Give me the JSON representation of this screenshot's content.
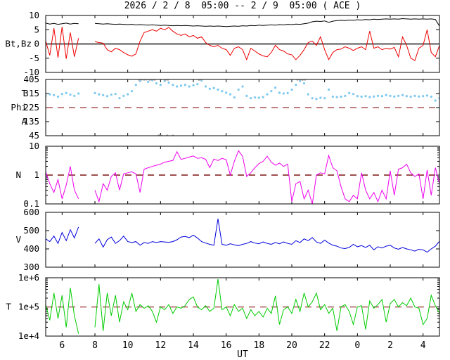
{
  "title": "2026 / 2 / 8  05:00 -- 2 / 9  05:00 ( ACE )",
  "xlabel": "UT",
  "colors": {
    "bt": "#000000",
    "bz": "#ee0000",
    "phi": "#7cc8f0",
    "phi_outlier": "#b8b8b8",
    "density": "#ee00ee",
    "speed": "#0000dd",
    "temperature": "#00cc00",
    "dash_rose": "#c07f7f",
    "dash_maroon": "#7d1414",
    "zero_line": "#555555"
  },
  "x_range": {
    "start_hour": 5,
    "end_hour": 29
  },
  "xticks": [
    {
      "h": 6,
      "label": "6"
    },
    {
      "h": 8,
      "label": "8"
    },
    {
      "h": 10,
      "label": "10"
    },
    {
      "h": 12,
      "label": "12"
    },
    {
      "h": 14,
      "label": "14"
    },
    {
      "h": 16,
      "label": "16"
    },
    {
      "h": 18,
      "label": "18"
    },
    {
      "h": 20,
      "label": "20"
    },
    {
      "h": 22,
      "label": "22"
    },
    {
      "h": 24,
      "label": "0"
    },
    {
      "h": 26,
      "label": "2"
    },
    {
      "h": 28,
      "label": "4"
    }
  ],
  "chart_data": [
    {
      "type": "line",
      "name": "magnetic-field-bt-bz",
      "scale": "linear",
      "ylim": [
        -10,
        10
      ],
      "ylabels": [
        {
          "text": "Bt,Bz",
          "at": 0,
          "x_end": 45
        }
      ],
      "yticks": [
        {
          "v": -10,
          "label": "-10"
        },
        {
          "v": -5,
          "label": "-5"
        },
        {
          "v": 0,
          "label": "0"
        },
        {
          "v": 5,
          "label": "5"
        },
        {
          "v": 10,
          "label": "10"
        }
      ],
      "hlines": [
        {
          "y": 0,
          "dash": false,
          "color": "#555555",
          "width": 2
        }
      ],
      "x_start": 5,
      "x_step": 0.25,
      "series": [
        {
          "name": "Bt",
          "style": "line",
          "color": "#000000",
          "values": [
            7.3,
            7.0,
            7.2,
            6.9,
            7.1,
            7.3,
            7.0,
            7.2,
            7.1,
            null,
            null,
            null,
            7.2,
            7.1,
            7.0,
            7.1,
            7.0,
            6.9,
            7.0,
            6.9,
            6.8,
            6.9,
            6.7,
            6.8,
            6.7,
            6.6,
            6.7,
            6.6,
            6.5,
            6.6,
            6.5,
            6.4,
            6.5,
            6.4,
            6.5,
            6.4,
            6.3,
            6.4,
            6.3,
            6.2,
            6.3,
            6.2,
            6.3,
            6.2,
            6.1,
            6.2,
            6.3,
            6.2,
            6.4,
            6.3,
            6.5,
            6.4,
            6.6,
            6.5,
            6.6,
            6.7,
            6.6,
            6.8,
            6.7,
            6.9,
            6.8,
            7.0,
            6.9,
            7.1,
            7.3,
            7.8,
            8.0,
            7.9,
            8.1,
            7.6,
            8.0,
            8.2,
            8.3,
            8.2,
            8.4,
            8.3,
            8.5,
            8.4,
            8.6,
            8.5,
            8.7,
            8.6,
            8.7,
            8.8,
            8.7,
            8.8,
            8.7,
            8.9,
            8.8,
            8.7,
            8.8,
            8.7,
            8.8,
            8.7,
            8.8,
            8.6,
            6.3
          ]
        },
        {
          "name": "Bz",
          "style": "line",
          "color": "#ee0000",
          "values": [
            1.0,
            -4.0,
            5.5,
            -4.8,
            6.0,
            -5.2,
            4.0,
            -4.5,
            2.0,
            null,
            null,
            null,
            0.8,
            0.5,
            0.3,
            -2.0,
            -2.8,
            -1.5,
            -2.0,
            -3.0,
            -3.8,
            -4.3,
            -3.5,
            1.0,
            4.0,
            4.5,
            5.0,
            4.5,
            5.5,
            5.0,
            5.8,
            4.5,
            3.5,
            3.0,
            3.5,
            2.5,
            3.0,
            2.0,
            2.5,
            0.5,
            -0.5,
            -1.0,
            -0.5,
            -1.5,
            -2.0,
            -4.0,
            -1.5,
            -1.0,
            -2.0,
            -5.5,
            -1.5,
            -2.5,
            -3.5,
            -4.2,
            -4.5,
            -3.0,
            -0.5,
            -2.0,
            -2.5,
            -3.5,
            -3.8,
            -5.5,
            -4.0,
            -2.0,
            0.5,
            1.0,
            -0.5,
            2.5,
            -2.0,
            -5.5,
            -3.0,
            -2.0,
            -1.8,
            -1.0,
            -1.5,
            -2.3,
            -1.5,
            -1.0,
            -2.0,
            4.5,
            -1.5,
            -1.0,
            -2.0,
            -1.5,
            -1.8,
            -1.2,
            -4.5,
            2.5,
            -0.5,
            -5.0,
            -5.8,
            -1.5,
            -0.5,
            5.0,
            -3.0,
            -4.5,
            -0.5
          ]
        }
      ]
    },
    {
      "type": "scatter",
      "name": "phi-angle",
      "scale": "linear",
      "ylim": [
        45,
        405
      ],
      "ylabels": [
        {
          "text": "T",
          "at": 315,
          "x_end": 38
        },
        {
          "text": "Phi",
          "at": 225,
          "x_end": 38
        },
        {
          "text": "A",
          "at": 135,
          "x_end": 38
        }
      ],
      "yticks": [
        {
          "v": 45,
          "label": "45"
        },
        {
          "v": 135,
          "label": "135"
        },
        {
          "v": 225,
          "label": "225"
        },
        {
          "v": 315,
          "label": "315"
        },
        {
          "v": 405,
          "label": "405"
        }
      ],
      "hlines": [
        {
          "y": 225,
          "dash": true,
          "color": "#c07f7f",
          "width": 2
        }
      ],
      "x_start": 5,
      "x_step": 0.25,
      "series": [
        {
          "name": "Phi",
          "style": "scatter",
          "color": "#7cc8f0",
          "values": [
            300,
            310,
            305,
            295,
            312,
            318,
            308,
            300,
            315,
            null,
            null,
            null,
            318,
            310,
            305,
            298,
            308,
            312,
            285,
            300,
            310,
            330,
            370,
            395,
            405,
            390,
            400,
            380,
            370,
            395,
            385,
            370,
            360,
            365,
            370,
            360,
            368,
            375,
            398,
            360,
            345,
            350,
            340,
            330,
            320,
            310,
            290,
            340,
            360,
            300,
            285,
            290,
            288,
            292,
            310,
            330,
            352,
            320,
            315,
            318,
            340,
            370,
            395,
            380,
            310,
            285,
            280,
            288,
            285,
            340,
            295,
            292,
            295,
            300,
            318,
            312,
            298,
            295,
            298,
            292,
            296,
            300,
            298,
            305,
            300,
            296,
            300,
            305,
            298,
            295,
            300,
            296,
            298,
            302,
            295,
            270,
            285
          ]
        },
        {
          "name": "Phi-wrap",
          "style": "scatter",
          "color": "#b8b8b8",
          "points": [
            [
              10.7,
              403
            ],
            [
              10.85,
              405
            ],
            [
              11.0,
              404
            ],
            [
              11.15,
              405
            ],
            [
              11.35,
              403
            ],
            [
              11.5,
              405
            ],
            [
              11.65,
              404
            ],
            [
              12.3,
              402
            ],
            [
              12.45,
              404
            ],
            [
              14.35,
              403
            ],
            [
              14.5,
              405
            ],
            [
              20.35,
              404
            ],
            [
              20.5,
              405
            ],
            [
              20.65,
              403
            ],
            [
              20.8,
              404
            ],
            [
              11.9,
              47
            ],
            [
              12.05,
              45
            ],
            [
              12.4,
              46
            ],
            [
              12.75,
              45
            ]
          ]
        }
      ]
    },
    {
      "type": "line",
      "name": "proton-density",
      "scale": "log",
      "ylim": [
        0.1,
        10
      ],
      "ylabels": [
        {
          "text": "N",
          "at": 1,
          "x_end": 30
        }
      ],
      "yticks": [
        {
          "v": 0.1,
          "label": "0.1"
        },
        {
          "v": 1,
          "label": "1"
        },
        {
          "v": 10,
          "label": "10"
        }
      ],
      "hlines": [
        {
          "y": 1,
          "dash": true,
          "color": "#7d1414",
          "width": 1.5
        }
      ],
      "x_start": 5,
      "x_step": 0.25,
      "series": [
        {
          "name": "N",
          "style": "line",
          "color": "#ee00ee",
          "values": [
            1.3,
            0.5,
            0.25,
            0.7,
            0.15,
            0.45,
            2.0,
            0.3,
            0.15,
            null,
            null,
            null,
            0.3,
            0.12,
            0.5,
            0.3,
            0.9,
            1.2,
            0.3,
            1.1,
            1.2,
            1.3,
            1.1,
            0.25,
            1.6,
            1.8,
            2.0,
            2.2,
            2.4,
            2.8,
            3.0,
            3.2,
            6.5,
            3.5,
            3.8,
            4.2,
            4.6,
            3.8,
            4.0,
            3.5,
            1.8,
            3.6,
            3.2,
            3.8,
            3.4,
            1.0,
            3.0,
            7.0,
            4.5,
            0.9,
            1.2,
            1.8,
            2.5,
            3.0,
            4.5,
            2.8,
            2.2,
            2.6,
            2.0,
            2.4,
            0.12,
            0.5,
            0.6,
            0.15,
            0.3,
            0.1,
            1.0,
            1.2,
            1.1,
            4.8,
            1.8,
            1.4,
            0.4,
            0.15,
            0.12,
            0.2,
            0.15,
            1.2,
            0.3,
            0.15,
            0.25,
            0.12,
            0.3,
            0.15,
            1.4,
            0.2,
            1.6,
            1.8,
            2.4,
            1.2,
            0.9,
            1.1,
            0.15,
            1.5,
            0.2,
            1.8,
            0.5
          ]
        }
      ]
    },
    {
      "type": "line",
      "name": "solar-wind-speed",
      "scale": "linear",
      "ylim": [
        300,
        600
      ],
      "ylabels": [
        {
          "text": "V",
          "at": 450,
          "x_end": 30
        }
      ],
      "yticks": [
        {
          "v": 300,
          "label": "300"
        },
        {
          "v": 400,
          "label": "400"
        },
        {
          "v": 500,
          "label": "500"
        },
        {
          "v": 600,
          "label": "600"
        }
      ],
      "hlines": [],
      "x_start": 5,
      "x_step": 0.25,
      "series": [
        {
          "name": "V",
          "style": "line",
          "color": "#0000dd",
          "values": [
            455,
            440,
            470,
            430,
            490,
            445,
            505,
            460,
            520,
            null,
            null,
            null,
            430,
            455,
            410,
            450,
            465,
            430,
            445,
            470,
            440,
            435,
            440,
            420,
            435,
            430,
            440,
            435,
            440,
            438,
            436,
            440,
            450,
            465,
            468,
            462,
            475,
            460,
            440,
            432,
            425,
            420,
            565,
            425,
            420,
            428,
            422,
            418,
            425,
            430,
            440,
            432,
            428,
            438,
            430,
            425,
            435,
            428,
            438,
            430,
            425,
            445,
            435,
            455,
            445,
            462,
            438,
            430,
            448,
            432,
            420,
            415,
            405,
            402,
            408,
            425,
            412,
            418,
            408,
            420,
            395,
            412,
            405,
            415,
            420,
            405,
            398,
            408,
            400,
            395,
            388,
            398,
            395,
            382,
            400,
            415,
            442
          ]
        }
      ]
    },
    {
      "type": "line",
      "name": "proton-temperature",
      "scale": "log",
      "ylim": [
        10000,
        1000000
      ],
      "ylabels": [
        {
          "text": "T",
          "at": 100000,
          "x_end": 16
        }
      ],
      "yticks": [
        {
          "v": 10000,
          "label": "1e+4"
        },
        {
          "v": 100000,
          "label": "1e+5"
        },
        {
          "v": 1000000,
          "label": "1e+6"
        }
      ],
      "hlines": [
        {
          "y": 100000,
          "dash": true,
          "color": "#c07f7f",
          "width": 2
        }
      ],
      "x_start": 5,
      "x_step": 0.25,
      "series": [
        {
          "name": "T",
          "style": "line",
          "color": "#00cc00",
          "values": [
            120000,
            35000,
            300000,
            40000,
            250000,
            20000,
            450000,
            50000,
            12000,
            null,
            null,
            null,
            20000,
            600000,
            15000,
            300000,
            50000,
            250000,
            30000,
            150000,
            80000,
            300000,
            70000,
            120000,
            90000,
            110000,
            70000,
            30000,
            100000,
            80000,
            120000,
            60000,
            100000,
            90000,
            110000,
            180000,
            220000,
            100000,
            80000,
            110000,
            70000,
            90000,
            900000,
            80000,
            100000,
            50000,
            120000,
            70000,
            90000,
            40000,
            80000,
            50000,
            70000,
            45000,
            90000,
            60000,
            240000,
            25000,
            80000,
            100000,
            60000,
            180000,
            70000,
            300000,
            100000,
            150000,
            300000,
            80000,
            120000,
            60000,
            90000,
            15000,
            100000,
            120000,
            70000,
            25000,
            100000,
            110000,
            17000,
            160000,
            90000,
            120000,
            180000,
            30000,
            130000,
            180000,
            100000,
            140000,
            110000,
            200000,
            100000,
            90000,
            25000,
            40000,
            250000,
            110000,
            60000
          ]
        }
      ]
    }
  ]
}
